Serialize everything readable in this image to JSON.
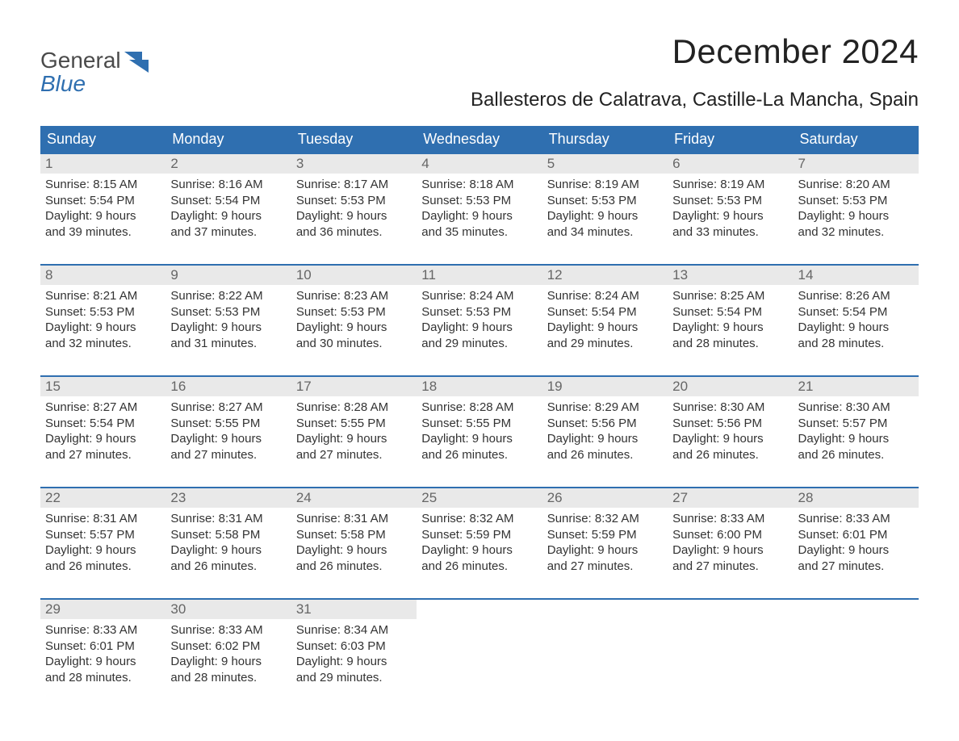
{
  "logo": {
    "word1": "General",
    "word2": "Blue",
    "mark_color": "#2f6fb0",
    "text_color": "#4a4a4a"
  },
  "title": "December 2024",
  "location": "Ballesteros de Calatrava, Castille-La Mancha, Spain",
  "colors": {
    "header_bg": "#2f6fb0",
    "header_text": "#ffffff",
    "week_rule": "#2f6fb0",
    "daynum_bg": "#e9e9e9",
    "daynum_text": "#666666",
    "body_text": "#333333",
    "background": "#ffffff"
  },
  "typography": {
    "title_fontsize": 42,
    "location_fontsize": 24,
    "dayhead_fontsize": 18,
    "daynum_fontsize": 17,
    "body_fontsize": 15,
    "font_family": "Arial"
  },
  "day_headers": [
    "Sunday",
    "Monday",
    "Tuesday",
    "Wednesday",
    "Thursday",
    "Friday",
    "Saturday"
  ],
  "weeks": [
    [
      {
        "n": "1",
        "sunrise": "Sunrise: 8:15 AM",
        "sunset": "Sunset: 5:54 PM",
        "d1": "Daylight: 9 hours",
        "d2": "and 39 minutes."
      },
      {
        "n": "2",
        "sunrise": "Sunrise: 8:16 AM",
        "sunset": "Sunset: 5:54 PM",
        "d1": "Daylight: 9 hours",
        "d2": "and 37 minutes."
      },
      {
        "n": "3",
        "sunrise": "Sunrise: 8:17 AM",
        "sunset": "Sunset: 5:53 PM",
        "d1": "Daylight: 9 hours",
        "d2": "and 36 minutes."
      },
      {
        "n": "4",
        "sunrise": "Sunrise: 8:18 AM",
        "sunset": "Sunset: 5:53 PM",
        "d1": "Daylight: 9 hours",
        "d2": "and 35 minutes."
      },
      {
        "n": "5",
        "sunrise": "Sunrise: 8:19 AM",
        "sunset": "Sunset: 5:53 PM",
        "d1": "Daylight: 9 hours",
        "d2": "and 34 minutes."
      },
      {
        "n": "6",
        "sunrise": "Sunrise: 8:19 AM",
        "sunset": "Sunset: 5:53 PM",
        "d1": "Daylight: 9 hours",
        "d2": "and 33 minutes."
      },
      {
        "n": "7",
        "sunrise": "Sunrise: 8:20 AM",
        "sunset": "Sunset: 5:53 PM",
        "d1": "Daylight: 9 hours",
        "d2": "and 32 minutes."
      }
    ],
    [
      {
        "n": "8",
        "sunrise": "Sunrise: 8:21 AM",
        "sunset": "Sunset: 5:53 PM",
        "d1": "Daylight: 9 hours",
        "d2": "and 32 minutes."
      },
      {
        "n": "9",
        "sunrise": "Sunrise: 8:22 AM",
        "sunset": "Sunset: 5:53 PM",
        "d1": "Daylight: 9 hours",
        "d2": "and 31 minutes."
      },
      {
        "n": "10",
        "sunrise": "Sunrise: 8:23 AM",
        "sunset": "Sunset: 5:53 PM",
        "d1": "Daylight: 9 hours",
        "d2": "and 30 minutes."
      },
      {
        "n": "11",
        "sunrise": "Sunrise: 8:24 AM",
        "sunset": "Sunset: 5:53 PM",
        "d1": "Daylight: 9 hours",
        "d2": "and 29 minutes."
      },
      {
        "n": "12",
        "sunrise": "Sunrise: 8:24 AM",
        "sunset": "Sunset: 5:54 PM",
        "d1": "Daylight: 9 hours",
        "d2": "and 29 minutes."
      },
      {
        "n": "13",
        "sunrise": "Sunrise: 8:25 AM",
        "sunset": "Sunset: 5:54 PM",
        "d1": "Daylight: 9 hours",
        "d2": "and 28 minutes."
      },
      {
        "n": "14",
        "sunrise": "Sunrise: 8:26 AM",
        "sunset": "Sunset: 5:54 PM",
        "d1": "Daylight: 9 hours",
        "d2": "and 28 minutes."
      }
    ],
    [
      {
        "n": "15",
        "sunrise": "Sunrise: 8:27 AM",
        "sunset": "Sunset: 5:54 PM",
        "d1": "Daylight: 9 hours",
        "d2": "and 27 minutes."
      },
      {
        "n": "16",
        "sunrise": "Sunrise: 8:27 AM",
        "sunset": "Sunset: 5:55 PM",
        "d1": "Daylight: 9 hours",
        "d2": "and 27 minutes."
      },
      {
        "n": "17",
        "sunrise": "Sunrise: 8:28 AM",
        "sunset": "Sunset: 5:55 PM",
        "d1": "Daylight: 9 hours",
        "d2": "and 27 minutes."
      },
      {
        "n": "18",
        "sunrise": "Sunrise: 8:28 AM",
        "sunset": "Sunset: 5:55 PM",
        "d1": "Daylight: 9 hours",
        "d2": "and 26 minutes."
      },
      {
        "n": "19",
        "sunrise": "Sunrise: 8:29 AM",
        "sunset": "Sunset: 5:56 PM",
        "d1": "Daylight: 9 hours",
        "d2": "and 26 minutes."
      },
      {
        "n": "20",
        "sunrise": "Sunrise: 8:30 AM",
        "sunset": "Sunset: 5:56 PM",
        "d1": "Daylight: 9 hours",
        "d2": "and 26 minutes."
      },
      {
        "n": "21",
        "sunrise": "Sunrise: 8:30 AM",
        "sunset": "Sunset: 5:57 PM",
        "d1": "Daylight: 9 hours",
        "d2": "and 26 minutes."
      }
    ],
    [
      {
        "n": "22",
        "sunrise": "Sunrise: 8:31 AM",
        "sunset": "Sunset: 5:57 PM",
        "d1": "Daylight: 9 hours",
        "d2": "and 26 minutes."
      },
      {
        "n": "23",
        "sunrise": "Sunrise: 8:31 AM",
        "sunset": "Sunset: 5:58 PM",
        "d1": "Daylight: 9 hours",
        "d2": "and 26 minutes."
      },
      {
        "n": "24",
        "sunrise": "Sunrise: 8:31 AM",
        "sunset": "Sunset: 5:58 PM",
        "d1": "Daylight: 9 hours",
        "d2": "and 26 minutes."
      },
      {
        "n": "25",
        "sunrise": "Sunrise: 8:32 AM",
        "sunset": "Sunset: 5:59 PM",
        "d1": "Daylight: 9 hours",
        "d2": "and 26 minutes."
      },
      {
        "n": "26",
        "sunrise": "Sunrise: 8:32 AM",
        "sunset": "Sunset: 5:59 PM",
        "d1": "Daylight: 9 hours",
        "d2": "and 27 minutes."
      },
      {
        "n": "27",
        "sunrise": "Sunrise: 8:33 AM",
        "sunset": "Sunset: 6:00 PM",
        "d1": "Daylight: 9 hours",
        "d2": "and 27 minutes."
      },
      {
        "n": "28",
        "sunrise": "Sunrise: 8:33 AM",
        "sunset": "Sunset: 6:01 PM",
        "d1": "Daylight: 9 hours",
        "d2": "and 27 minutes."
      }
    ],
    [
      {
        "n": "29",
        "sunrise": "Sunrise: 8:33 AM",
        "sunset": "Sunset: 6:01 PM",
        "d1": "Daylight: 9 hours",
        "d2": "and 28 minutes."
      },
      {
        "n": "30",
        "sunrise": "Sunrise: 8:33 AM",
        "sunset": "Sunset: 6:02 PM",
        "d1": "Daylight: 9 hours",
        "d2": "and 28 minutes."
      },
      {
        "n": "31",
        "sunrise": "Sunrise: 8:34 AM",
        "sunset": "Sunset: 6:03 PM",
        "d1": "Daylight: 9 hours",
        "d2": "and 29 minutes."
      },
      null,
      null,
      null,
      null
    ]
  ]
}
